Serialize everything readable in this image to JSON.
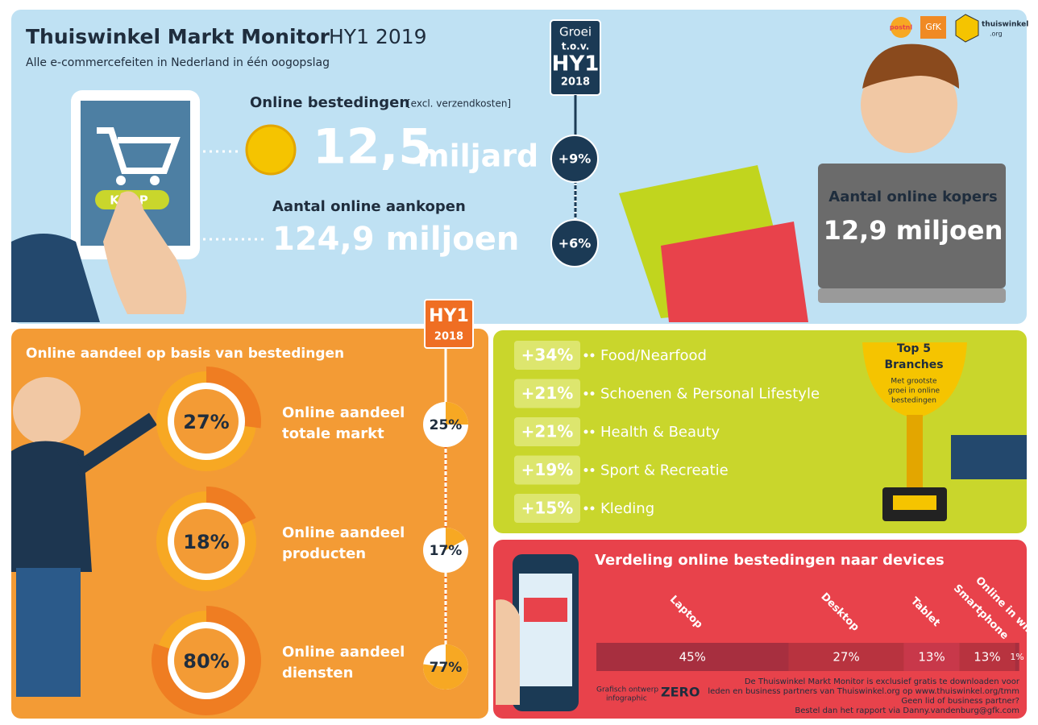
{
  "header": {
    "title": "Thuiswinkel Markt Monitor",
    "title_suffix": "HY1 2019",
    "subtitle": "Alle e-commercefeiten in Nederland in één oogopslag"
  },
  "logos": [
    "postnl",
    "GfK",
    "thuiswinkel",
    ".org"
  ],
  "growth_badge": [
    "Groei",
    "t.o.v.",
    "HY1",
    "2018"
  ],
  "tablet_button": "KOOP",
  "spending": {
    "label": "Online bestedingen",
    "note": "[excl. verzendkosten]",
    "value": "12,5",
    "unit": "miljard",
    "growth": "+9%"
  },
  "purchases": {
    "label": "Aantal online aankopen",
    "value": "124,9 miljoen",
    "growth": "+6%"
  },
  "buyers": {
    "label": "Aantal online kopers",
    "value": "12,9 miljoen"
  },
  "share": {
    "title": "Online aandeel op basis van bestedingen",
    "badge": [
      "HY1",
      "2018"
    ],
    "items": [
      {
        "label": [
          "Online aandeel",
          "totale markt"
        ],
        "value": 27,
        "value_label": "27%",
        "previous": 25,
        "previous_label": "25%"
      },
      {
        "label": [
          "Online aandeel",
          "producten"
        ],
        "value": 18,
        "value_label": "18%",
        "previous": 17,
        "previous_label": "17%"
      },
      {
        "label": [
          "Online aandeel",
          "diensten"
        ],
        "value": 80,
        "value_label": "80%",
        "previous": 77,
        "previous_label": "77%"
      }
    ]
  },
  "branches": {
    "title": [
      "Top 5",
      "Branches"
    ],
    "subtitle": [
      "Met grootste",
      "groei in online",
      "bestedingen"
    ],
    "rows": [
      {
        "growth": "+34%",
        "name": "Food/Nearfood"
      },
      {
        "growth": "+21%",
        "name": "Schoenen & Personal Lifestyle"
      },
      {
        "growth": "+21%",
        "name": "Health & Beauty"
      },
      {
        "growth": "+19%",
        "name": "Sport & Recreatie"
      },
      {
        "growth": "+15%",
        "name": "Kleding"
      }
    ]
  },
  "devices": {
    "title": "Verdeling online bestedingen naar devices",
    "categories": [
      "Laptop",
      "Desktop",
      "Tablet",
      "Smartphone",
      "Online in winkel"
    ],
    "values": [
      45,
      27,
      13,
      13,
      1
    ],
    "value_labels": [
      "45%",
      "27%",
      "13%",
      "13%",
      "1%"
    ]
  },
  "footer": {
    "credit": [
      "Grafisch ontwerp",
      "infographic"
    ],
    "credit_logo": "ZERO",
    "note": [
      "De Thuiswinkel Markt Monitor is exclusief gratis te downloaden voor",
      "leden en business partners van Thuiswinkel.org op www.thuiswinkel.org/tmm",
      "Geen lid of business partner?",
      "Bestel dan het rapport via Danny.vandenburg@gfk.com"
    ]
  }
}
